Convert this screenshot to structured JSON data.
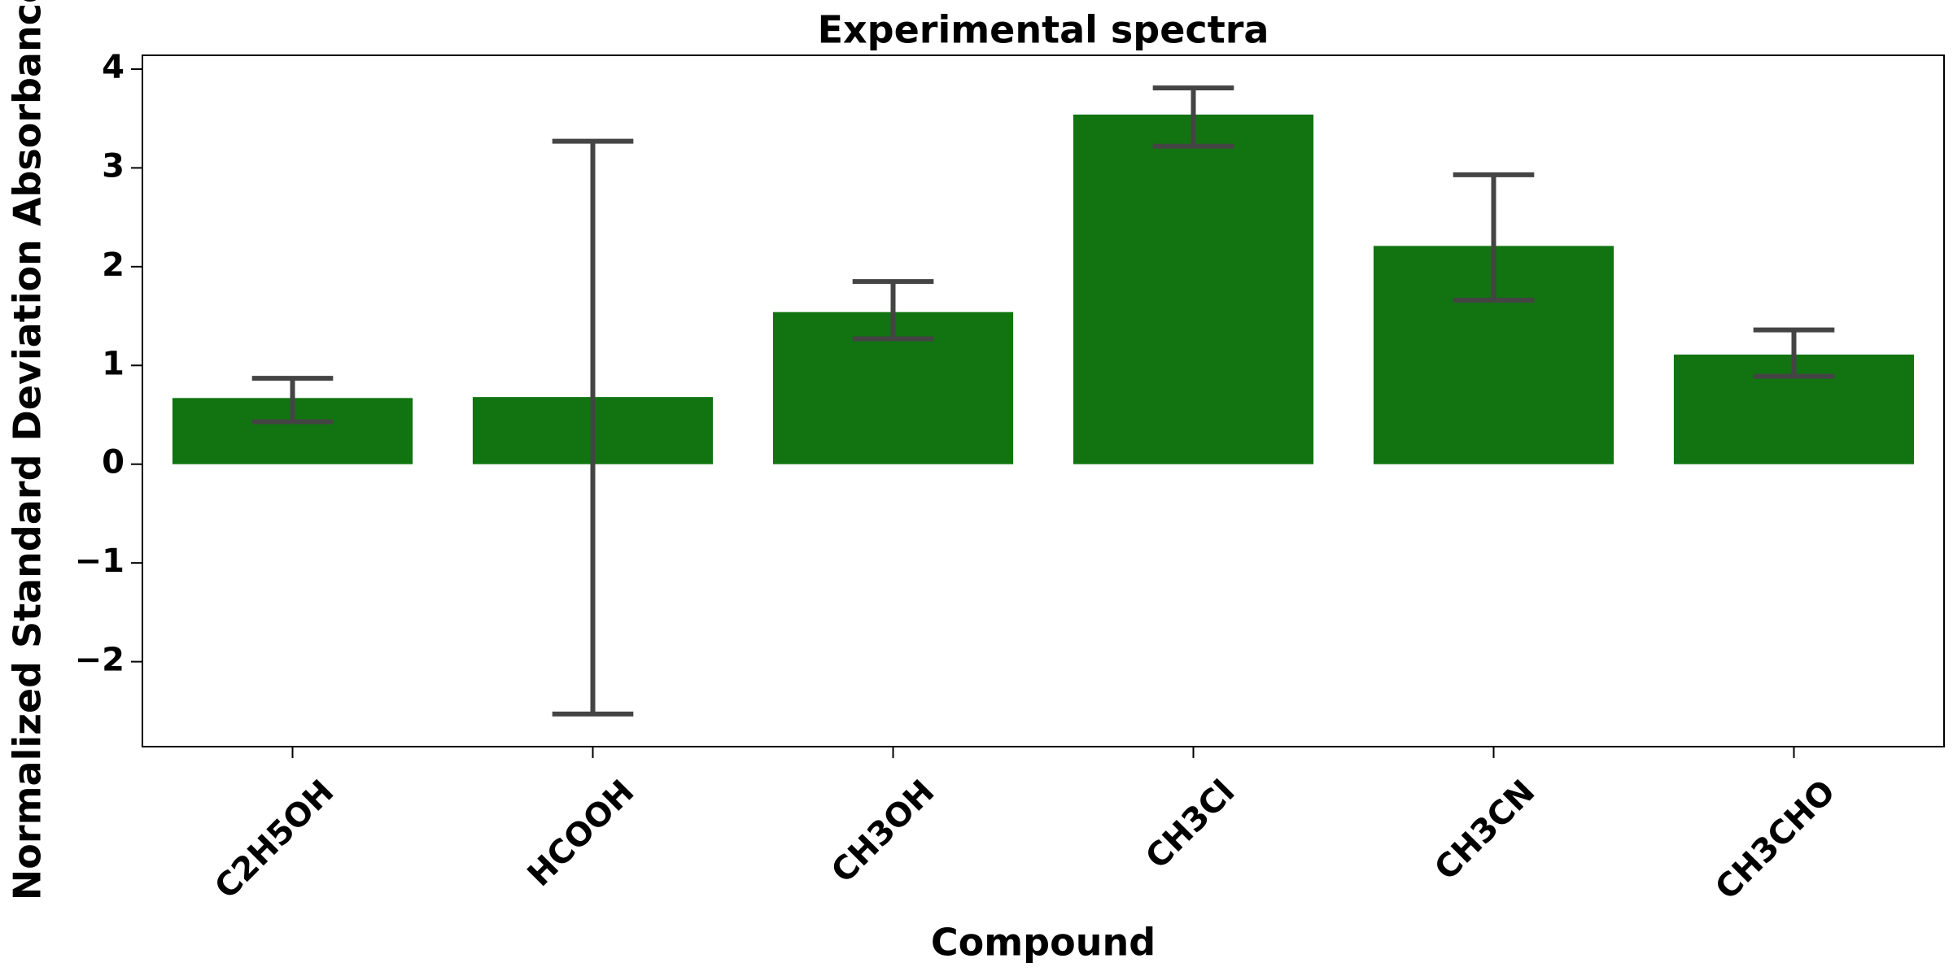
{
  "chart_data": {
    "type": "bar",
    "title": "Experimental spectra",
    "x_label": "Compound",
    "y_label": "Normalized Standard Deviation Absorbance",
    "categories": [
      "C2H5OH",
      "HCOOH",
      "CH3OH",
      "CH3Cl",
      "CH3CN",
      "CH3CHO"
    ],
    "values": [
      0.67,
      0.68,
      1.54,
      3.54,
      2.21,
      1.11
    ],
    "error_minus": [
      0.24,
      3.21,
      0.27,
      0.32,
      0.55,
      0.22
    ],
    "error_plus": [
      0.2,
      2.59,
      0.31,
      0.27,
      0.72,
      0.25
    ],
    "color": "#117411",
    "error_color": "#444444",
    "ylim": [
      -2.86,
      4.14
    ],
    "yticks": [
      {
        "value": -2,
        "label": "−2"
      },
      {
        "value": -1,
        "label": "−1"
      },
      0,
      1,
      2,
      3,
      4
    ],
    "grid": false
  }
}
